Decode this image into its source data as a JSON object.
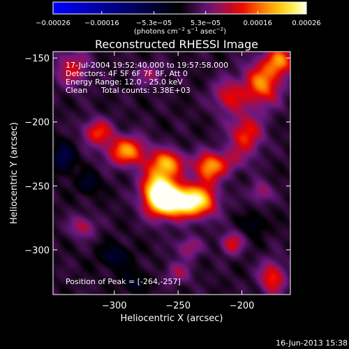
{
  "chart_data": {
    "type": "heatmap",
    "title": "Reconstructed RHESSI Image",
    "xlabel": "Heliocentric X (arcsec)",
    "ylabel": "Heliocentric Y (arcsec)",
    "xlim": [
      -348,
      -162
    ],
    "ylim": [
      -335,
      -145
    ],
    "x_ticks": [
      -300,
      -250,
      -200
    ],
    "x_tick_labels": [
      "−300",
      "−250",
      "−200"
    ],
    "y_ticks": [
      -150,
      -200,
      -250,
      -300
    ],
    "y_tick_labels": [
      "−150",
      "−200",
      "−250",
      "−300"
    ],
    "colorbar": {
      "range": [
        -0.00026,
        0.00026
      ],
      "ticks": [
        -0.00026,
        -0.00016,
        -5.3e-05,
        5.3e-05,
        0.00016,
        0.00026
      ],
      "tick_labels": [
        "−0.00026",
        "−0.00016",
        "−5.3e−05",
        "5.3e−05",
        "0.00016",
        "0.00026"
      ],
      "units_prefix": "(photons cm",
      "units_exp1": "−2",
      "units_mid": " s",
      "units_exp2": "−1",
      "units_mid2": " asec",
      "units_exp3": "−2",
      "units_suffix": ")",
      "colormap": "black-purple-red-orange-yellow-white",
      "colors": [
        "#0000ff",
        "#000000",
        "#800080",
        "#ff0000",
        "#ff9900",
        "#ffff00",
        "#ffffff"
      ]
    },
    "annotations": {
      "time_range": "17-Jul-2004 19:52:40.000 to 19:57:58.000",
      "detectors": "Detectors: 4F 5F 6F 7F 8F, Att 0",
      "energy_range": "Energy Range: 12.0 - 25.0 keV",
      "algorithm": "Clean",
      "total_counts": "Total counts: 3.38E+03",
      "peak_position": "Position of Peak = [-264,-257]"
    },
    "peak": {
      "x": -264,
      "y": -257
    },
    "blobs": [
      {
        "x": -265,
        "y": -255,
        "sx": 9,
        "sy": 12,
        "v": 0.00027
      },
      {
        "x": -250,
        "y": -262,
        "sx": 10,
        "sy": 8,
        "v": 0.00022
      },
      {
        "x": -233,
        "y": -262,
        "sx": 10,
        "sy": 9,
        "v": 0.00017
      },
      {
        "x": -258,
        "y": -232,
        "sx": 9,
        "sy": 7,
        "v": 0.00015
      },
      {
        "x": -290,
        "y": -223,
        "sx": 11,
        "sy": 8,
        "v": 0.00016
      },
      {
        "x": -313,
        "y": -208,
        "sx": 8,
        "sy": 7,
        "v": 0.00012
      },
      {
        "x": -227,
        "y": -238,
        "sx": 7,
        "sy": 8,
        "v": 0.00011
      },
      {
        "x": -218,
        "y": -232,
        "sx": 12,
        "sy": 7,
        "v": 9e-05
      },
      {
        "x": -197,
        "y": -210,
        "sx": 9,
        "sy": 11,
        "v": 0.00012
      },
      {
        "x": -210,
        "y": -180,
        "sx": 9,
        "sy": 9,
        "v": 0.0001
      },
      {
        "x": -184,
        "y": -170,
        "sx": 10,
        "sy": 12,
        "v": 0.00015
      },
      {
        "x": -170,
        "y": -152,
        "sx": 8,
        "sy": 8,
        "v": 0.00014
      },
      {
        "x": -333,
        "y": -158,
        "sx": 9,
        "sy": 10,
        "v": 9e-05
      },
      {
        "x": -272,
        "y": -163,
        "sx": 8,
        "sy": 6,
        "v": 6e-05
      },
      {
        "x": -325,
        "y": -282,
        "sx": 7,
        "sy": 6,
        "v": 8e-05
      },
      {
        "x": -242,
        "y": -298,
        "sx": 7,
        "sy": 6,
        "v": 7e-05
      },
      {
        "x": -208,
        "y": -295,
        "sx": 6,
        "sy": 6,
        "v": 0.0001
      },
      {
        "x": -176,
        "y": -322,
        "sx": 7,
        "sy": 9,
        "v": 0.00012
      },
      {
        "x": -250,
        "y": -318,
        "sx": 8,
        "sy": 6,
        "v": 6e-05
      },
      {
        "x": -185,
        "y": -255,
        "sx": 6,
        "sy": 6,
        "v": 7e-05
      },
      {
        "x": -340,
        "y": -228,
        "sx": 6,
        "sy": 8,
        "v": -9e-05
      },
      {
        "x": -320,
        "y": -248,
        "sx": 6,
        "sy": 6,
        "v": -6e-05
      },
      {
        "x": -300,
        "y": -305,
        "sx": 8,
        "sy": 6,
        "v": -7e-05
      },
      {
        "x": -190,
        "y": -280,
        "sx": 6,
        "sy": 6,
        "v": -5e-05
      },
      {
        "x": -285,
        "y": -325,
        "sx": 8,
        "sy": 6,
        "v": -5e-05
      }
    ]
  },
  "footer": {
    "timestamp": "16-Jun-2013 15:38"
  }
}
